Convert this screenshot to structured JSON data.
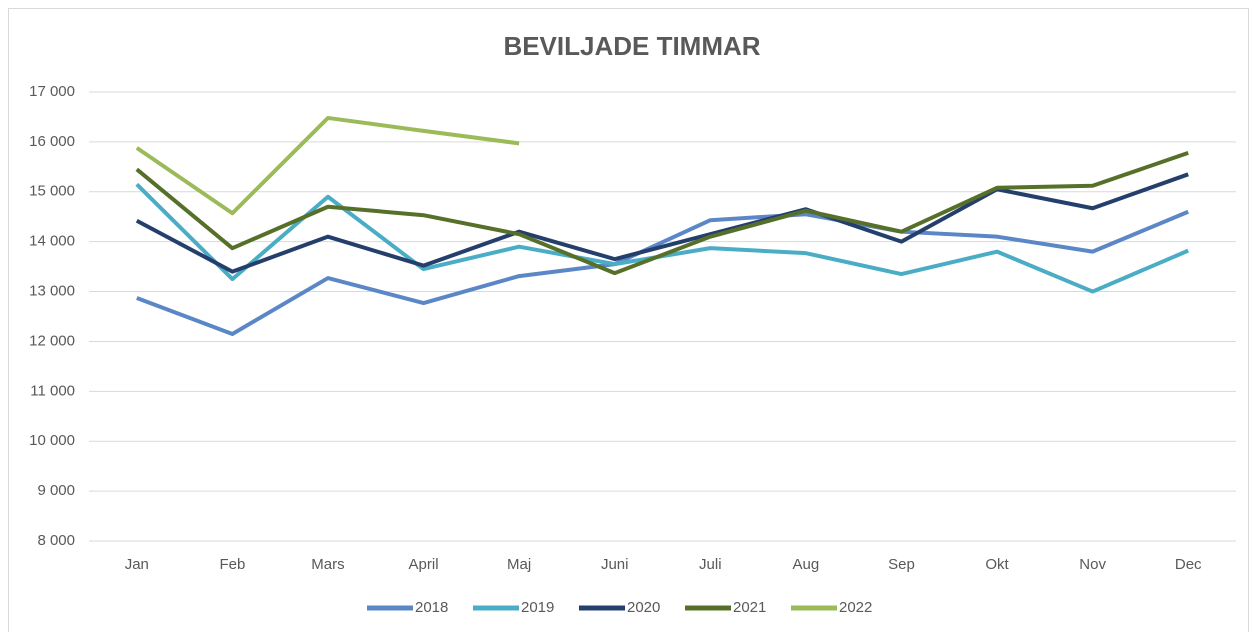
{
  "chart_data": {
    "type": "line",
    "title": "BEVILJADE TIMMAR",
    "categories": [
      "Jan",
      "Feb",
      "Mars",
      "April",
      "Maj",
      "Juni",
      "Juli",
      "Aug",
      "Sep",
      "Okt",
      "Nov",
      "Dec"
    ],
    "series": [
      {
        "name": "2018",
        "color": "#5b87c7",
        "values": [
          12870,
          12150,
          13270,
          12770,
          13310,
          13550,
          14430,
          14550,
          14200,
          14100,
          13800,
          14600
        ]
      },
      {
        "name": "2019",
        "color": "#4bacc6",
        "values": [
          15150,
          13250,
          14900,
          13450,
          13900,
          13550,
          13870,
          13770,
          13350,
          13800,
          13000,
          13820
        ]
      },
      {
        "name": "2020",
        "color": "#243f6b",
        "values": [
          14420,
          13400,
          14100,
          13520,
          14200,
          13650,
          14150,
          14650,
          14000,
          15050,
          14670,
          15350
        ]
      },
      {
        "name": "2021",
        "color": "#56702a",
        "values": [
          15450,
          13870,
          14700,
          14530,
          14150,
          13370,
          14100,
          14620,
          14200,
          15080,
          15120,
          15780
        ]
      },
      {
        "name": "2022",
        "color": "#9bbb59",
        "values": [
          15880,
          14570,
          16480,
          16220,
          15970,
          null,
          null,
          null,
          null,
          null,
          null,
          null
        ]
      }
    ],
    "ylim": [
      8000,
      17000
    ],
    "yticks": [
      {
        "value": 8000,
        "label": "8 000"
      },
      {
        "value": 9000,
        "label": "9 000"
      },
      {
        "value": 10000,
        "label": "10 000"
      },
      {
        "value": 11000,
        "label": "11 000"
      },
      {
        "value": 12000,
        "label": "12 000"
      },
      {
        "value": 13000,
        "label": "13 000"
      },
      {
        "value": 14000,
        "label": "14 000"
      },
      {
        "value": 15000,
        "label": "15 000"
      },
      {
        "value": 16000,
        "label": "16 000"
      },
      {
        "value": 17000,
        "label": "17 000"
      }
    ],
    "grid": true,
    "legend": "bottom"
  }
}
